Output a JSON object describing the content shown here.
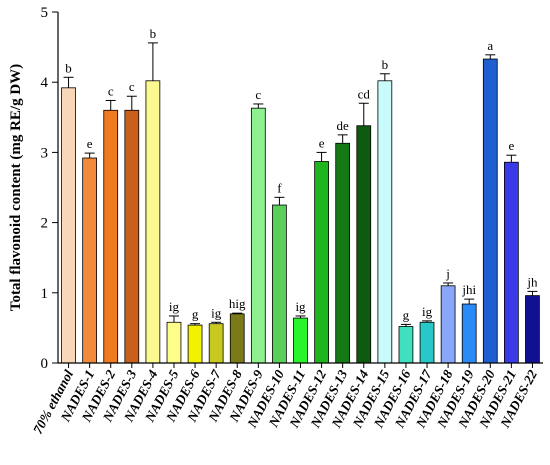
{
  "chart_data": {
    "type": "bar",
    "title": "",
    "xlabel": "",
    "ylabel": "Total flavonoid content (mg RE/g DW)",
    "ylim": [
      0,
      5
    ],
    "yticks": [
      0,
      1,
      2,
      3,
      4,
      5
    ],
    "grid": false,
    "categories": [
      "70% ethanol",
      "NADES-1",
      "NADES-2",
      "NADES-3",
      "NADES-4",
      "NADES-5",
      "NADES-6",
      "NADES-7",
      "NADES-8",
      "NADES-9",
      "NADES-10",
      "NADES-11",
      "NADES-12",
      "NADES-13",
      "NADES-14",
      "NADES-15",
      "NADES-16",
      "NADES-17",
      "NADES-18",
      "NADES-19",
      "NADES-20",
      "NADES-21",
      "NADES-22"
    ],
    "values": [
      3.92,
      2.92,
      3.6,
      3.6,
      4.02,
      0.58,
      0.54,
      0.56,
      0.7,
      3.63,
      2.25,
      0.64,
      2.87,
      3.13,
      3.38,
      4.02,
      0.52,
      0.58,
      1.1,
      0.84,
      4.33,
      2.86,
      0.96
    ],
    "errors": [
      0.15,
      0.07,
      0.14,
      0.2,
      0.54,
      0.09,
      0.02,
      0.02,
      0.01,
      0.06,
      0.11,
      0.03,
      0.13,
      0.12,
      0.32,
      0.1,
      0.03,
      0.02,
      0.04,
      0.07,
      0.06,
      0.1,
      0.06
    ],
    "significance": [
      "b",
      "e",
      "c",
      "c",
      "b",
      "ig",
      "g",
      "ig",
      "hig",
      "c",
      "f",
      "ig",
      "e",
      "de",
      "cd",
      "b",
      "g",
      "ig",
      "j",
      "jhi",
      "a",
      "e",
      "jh"
    ],
    "colors": [
      "#f8d7b8",
      "#f28a3c",
      "#ef7a1f",
      "#c85f1a",
      "#fafa90",
      "#fdfd8a",
      "#f2f200",
      "#c8c820",
      "#7a7a18",
      "#8ef08e",
      "#5ad05a",
      "#2af52a",
      "#1eb51e",
      "#157a15",
      "#0e5a0e",
      "#c9fbfb",
      "#3ee0c0",
      "#28c8c8",
      "#8aa6f8",
      "#2a8af8",
      "#1f5fcf",
      "#3a3ae8",
      "#101090"
    ]
  }
}
